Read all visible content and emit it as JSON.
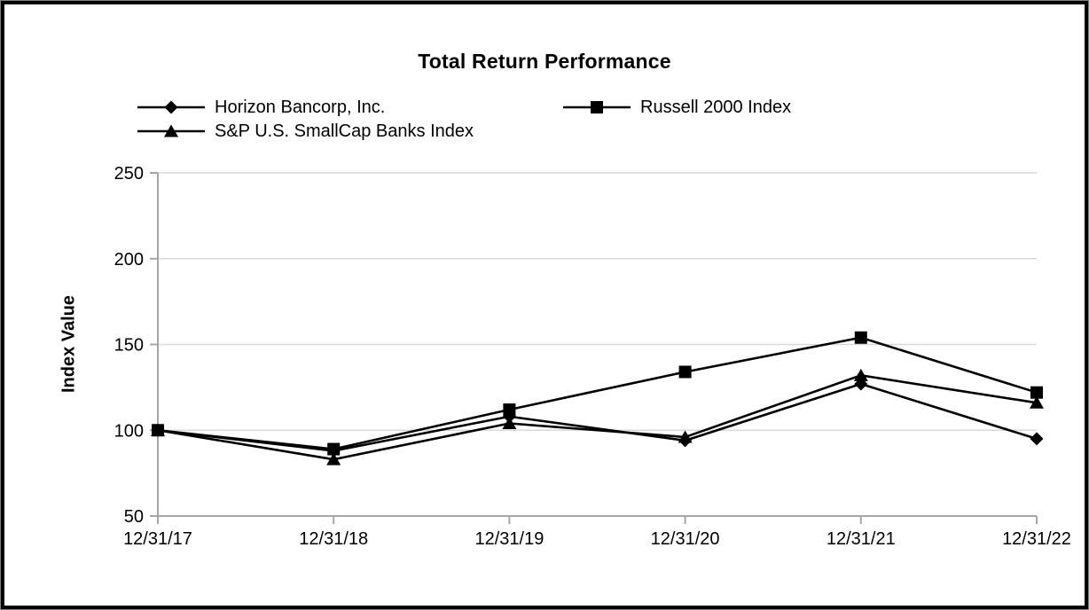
{
  "accent_colors": {
    "series_color": "#000000",
    "axis_color": "#a6a6a6",
    "gridline_color": "#d9d9d9",
    "frame_border_color": "#000000"
  },
  "chart_data": {
    "type": "line",
    "title": "Total Return Performance",
    "xlabel": "",
    "ylabel": "Index Value",
    "ylim": [
      50,
      250
    ],
    "yticks": [
      50,
      100,
      150,
      200,
      250
    ],
    "grid": true,
    "legend_position": "top-left, two columns above plot",
    "categories": [
      "12/31/17",
      "12/31/18",
      "12/31/19",
      "12/31/20",
      "12/31/21",
      "12/31/22"
    ],
    "series": [
      {
        "name": "Horizon Bancorp, Inc.",
        "marker": "diamond",
        "values": [
          100,
          88,
          108,
          94,
          127,
          95
        ]
      },
      {
        "name": "Russell 2000 Index",
        "marker": "square",
        "values": [
          100,
          89,
          112,
          134,
          154,
          122
        ]
      },
      {
        "name": "S&P U.S. SmallCap Banks Index",
        "marker": "triangle",
        "values": [
          100,
          83,
          104,
          96,
          132,
          116
        ]
      }
    ]
  }
}
